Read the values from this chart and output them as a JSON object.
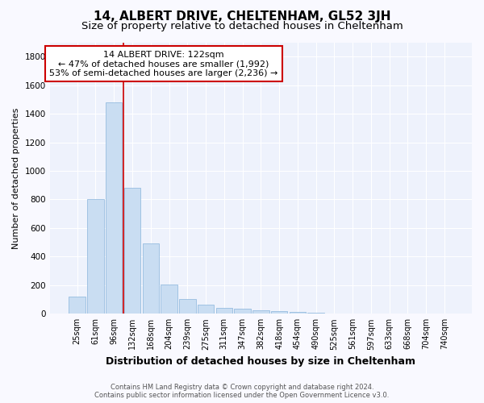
{
  "title": "14, ALBERT DRIVE, CHELTENHAM, GL52 3JH",
  "subtitle": "Size of property relative to detached houses in Cheltenham",
  "xlabel": "Distribution of detached houses by size in Cheltenham",
  "ylabel": "Number of detached properties",
  "footer_line1": "Contains HM Land Registry data © Crown copyright and database right 2024.",
  "footer_line2": "Contains public sector information licensed under the Open Government Licence v3.0.",
  "categories": [
    "25sqm",
    "61sqm",
    "96sqm",
    "132sqm",
    "168sqm",
    "204sqm",
    "239sqm",
    "275sqm",
    "311sqm",
    "347sqm",
    "382sqm",
    "418sqm",
    "454sqm",
    "490sqm",
    "525sqm",
    "561sqm",
    "597sqm",
    "633sqm",
    "668sqm",
    "704sqm",
    "740sqm"
  ],
  "values": [
    120,
    800,
    1480,
    880,
    490,
    205,
    105,
    65,
    40,
    35,
    25,
    20,
    15,
    5,
    0,
    0,
    0,
    0,
    0,
    0,
    0
  ],
  "bar_color": "#c9ddf2",
  "bar_edge_color": "#89b4db",
  "vline_x_index": 3,
  "vline_color": "#cc0000",
  "annotation_line1": "14 ALBERT DRIVE: 122sqm",
  "annotation_line2": "← 47% of detached houses are smaller (1,992)",
  "annotation_line3": "53% of semi-detached houses are larger (2,236) →",
  "annotation_box_color": "#ffffff",
  "annotation_box_edgecolor": "#cc0000",
  "ylim": [
    0,
    1900
  ],
  "yticks": [
    0,
    200,
    400,
    600,
    800,
    1000,
    1200,
    1400,
    1600,
    1800
  ],
  "background_color": "#eef2fc",
  "grid_color": "#ffffff",
  "title_fontsize": 11,
  "subtitle_fontsize": 9.5,
  "xlabel_fontsize": 9,
  "ylabel_fontsize": 8,
  "tick_fontsize": 7,
  "annotation_fontsize": 8,
  "footer_fontsize": 6
}
